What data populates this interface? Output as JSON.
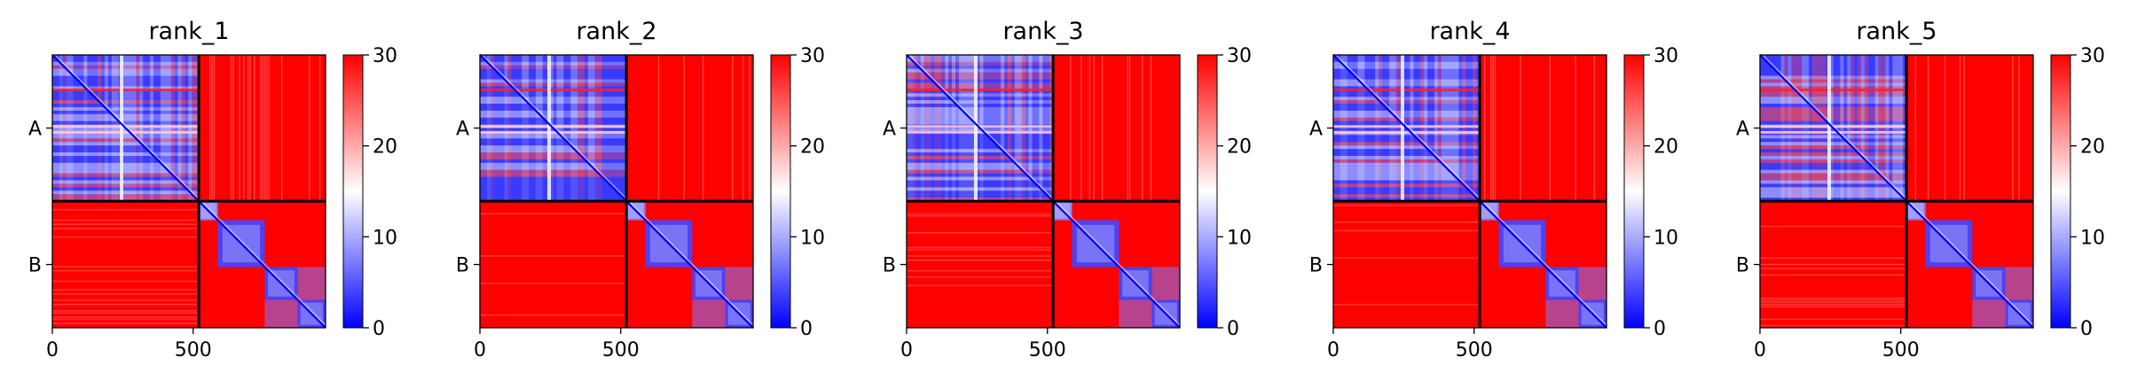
{
  "chart_data": {
    "type": "heatmap",
    "panels": [
      {
        "title": "rank_1"
      },
      {
        "title": "rank_2"
      },
      {
        "title": "rank_3"
      },
      {
        "title": "rank_4"
      },
      {
        "title": "rank_5"
      }
    ],
    "chains": [
      {
        "label": "A",
        "start": 0,
        "end": 520
      },
      {
        "label": "B",
        "start": 520,
        "end": 970
      }
    ],
    "x_range": [
      0,
      970
    ],
    "x_ticks": [
      0,
      500
    ],
    "x_tick_labels": [
      "0",
      "500"
    ],
    "colorbar": {
      "range": [
        0,
        30
      ],
      "ticks": [
        0,
        10,
        20,
        30
      ],
      "tick_labels": [
        "0",
        "10",
        "20",
        "30"
      ],
      "colormap": [
        "#0000ff",
        "#ffffff",
        "#ff0000"
      ]
    },
    "grid": false
  }
}
